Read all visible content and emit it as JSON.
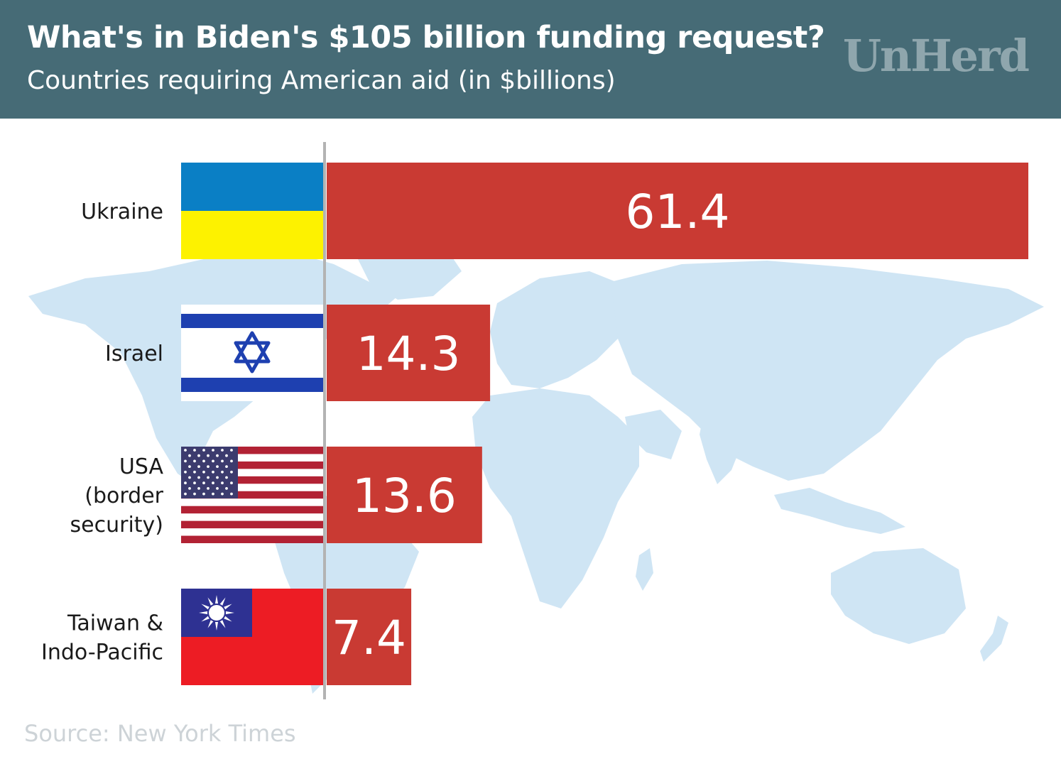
{
  "header": {
    "title": "What's in Biden's $105 billion funding request?",
    "subtitle": "Countries requiring American aid (in $billions)",
    "brand": "UnHerd"
  },
  "source": "Source: New York Times",
  "colors": {
    "header_bg": "#466b76",
    "bar": "#c93a33",
    "map": "#cfe5f4",
    "axis": "#b3b3b3"
  },
  "chart_data": {
    "type": "bar",
    "orientation": "horizontal",
    "categories": [
      "Ukraine",
      "Israel",
      "USA (border security)",
      "Taiwan & Indo-Pacific"
    ],
    "category_lines": [
      [
        "Ukraine"
      ],
      [
        "Israel"
      ],
      [
        "USA",
        "(border",
        "security)"
      ],
      [
        "Taiwan &",
        "Indo-Pacific"
      ]
    ],
    "values": [
      61.4,
      14.3,
      13.6,
      7.4
    ],
    "value_labels": [
      "61.4",
      "14.3",
      "13.6",
      "7.4"
    ],
    "flags": [
      "ukraine-flag",
      "israel-flag",
      "usa-flag",
      "taiwan-flag"
    ],
    "xlim": [
      0,
      61.4
    ],
    "grid": false,
    "background": "world-map"
  }
}
